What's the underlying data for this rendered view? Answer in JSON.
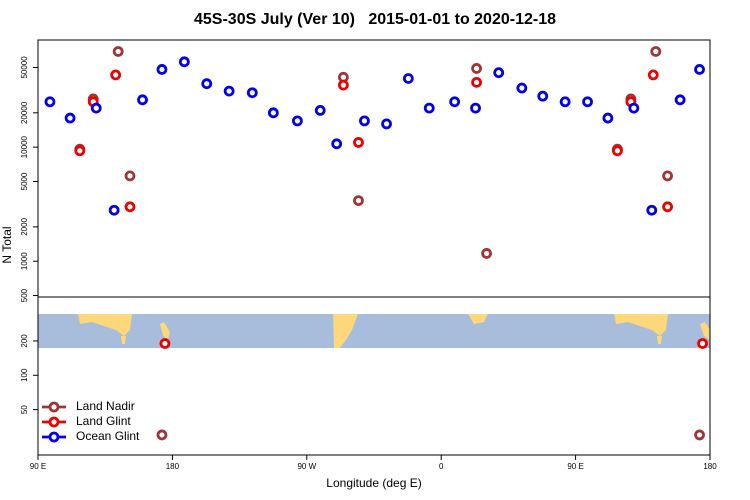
{
  "chart_data": {
    "type": "scatter",
    "title": "45S-30S July (Ver 10)   2015-01-01 to 2020-12-18",
    "x_label": "Longitude (deg E)",
    "y_label": "N Total",
    "log_y": true,
    "legend": "bottom-left",
    "xlim": [
      90,
      540
    ],
    "xticks": [
      {
        "value": 90,
        "label": "90 E"
      },
      {
        "value": 180,
        "label": "180"
      },
      {
        "value": 270,
        "label": "90 W"
      },
      {
        "value": 360,
        "label": "0"
      },
      {
        "value": 450,
        "label": "90 E"
      },
      {
        "value": 540,
        "label": "180"
      }
    ],
    "ylim": [
      20,
      87000
    ],
    "yticks": [
      50,
      100,
      200,
      500,
      1000,
      2000,
      5000,
      10000,
      20000,
      50000
    ],
    "series": [
      {
        "name": "Land Nadir",
        "color": "#a03535",
        "x": [
          118,
          127,
          143.7,
          151.6,
          173,
          294.5,
          304.6,
          383.7,
          390.4,
          478,
          487,
          503.7,
          511.6,
          533
        ],
        "values": [
          9600,
          26500,
          69000,
          5600,
          30,
          41000,
          3400,
          49000,
          1170,
          9600,
          26500,
          69000,
          5600,
          30
        ]
      },
      {
        "name": "Land Glint",
        "color": "#ee0000",
        "x": [
          118,
          127,
          142,
          151.6,
          175,
          294.5,
          304.6,
          383.7,
          478,
          487,
          502,
          511.6,
          535
        ],
        "values": [
          9300,
          25000,
          43000,
          3000,
          190,
          35000,
          11000,
          37000,
          9300,
          25000,
          43000,
          3000,
          190
        ]
      },
      {
        "name": "Ocean Glint",
        "color": "#0000ee",
        "x": [
          98,
          111.5,
          129,
          141,
          160,
          173,
          188,
          203,
          218,
          233.5,
          247.6,
          263.7,
          279,
          290,
          308.6,
          323.4,
          338,
          352,
          369,
          383,
          398.5,
          414,
          428,
          443,
          458,
          471.6,
          489,
          501,
          520,
          533
        ],
        "values": [
          25000,
          18000,
          22000,
          2800,
          26000,
          48000,
          56000,
          36000,
          31000,
          30000,
          20000,
          17000,
          21000,
          10700,
          17000,
          16000,
          40000,
          22000,
          25000,
          22000,
          45000,
          33000,
          28000,
          25000,
          25000,
          18000,
          22000,
          2800,
          26000,
          48000
        ]
      }
    ]
  }
}
